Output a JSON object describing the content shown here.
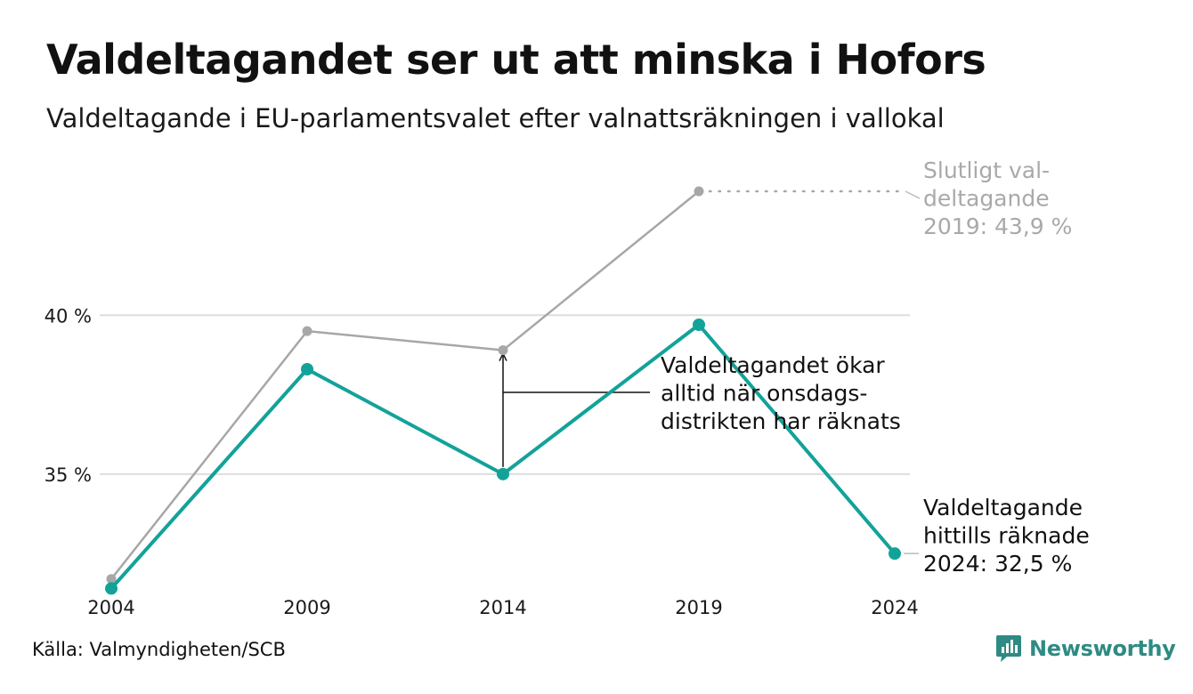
{
  "header": {
    "title": "Valdeltagandet ser ut att minska i Hofors",
    "subtitle": "Valdeltagande i EU-parlamentsvalet efter valnattsräkningen i vallokal"
  },
  "footer": {
    "source": "Källa: Valmyndigheten/SCB",
    "brand": "Newsworthy"
  },
  "colors": {
    "teal": "#13a29a",
    "grey": "#a7a7a7",
    "grid": "#dedede",
    "brand": "#2e8b84"
  },
  "chart_data": {
    "type": "line",
    "title": "Valdeltagandet ser ut att minska i Hofors",
    "subtitle": "Valdeltagande i EU-parlamentsvalet efter valnattsräkningen i vallokal",
    "x": [
      "2004",
      "2009",
      "2014",
      "2019",
      "2024"
    ],
    "ylim": [
      30.6,
      44.6
    ],
    "yticks": [
      {
        "value": 35,
        "label": "35 %"
      },
      {
        "value": 40,
        "label": "40 %"
      }
    ],
    "grid": true,
    "series": [
      {
        "key": "final",
        "color": "#a7a7a7",
        "values": [
          31.7,
          39.5,
          38.9,
          43.9,
          null
        ]
      },
      {
        "key": "election_night",
        "color": "#13a29a",
        "values": [
          31.4,
          38.3,
          35.0,
          39.7,
          32.5
        ]
      }
    ],
    "annotations": {
      "final_2019": [
        "Slutligt val-",
        "deltagande",
        "2019: 43,9 %"
      ],
      "wednesday": [
        "Valdeltagandet ökar",
        "alltid när onsdags-",
        "distrikten har räknats"
      ],
      "current_2024": [
        "Valdeltagande",
        "hittills räknade",
        "2024: 32,5 %"
      ]
    }
  }
}
